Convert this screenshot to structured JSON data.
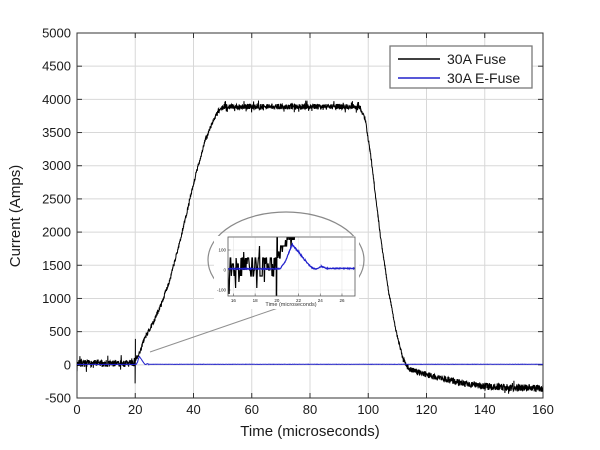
{
  "colors": {
    "background": "#ffffff",
    "grid": "#d8d8d8",
    "axis": "#333333",
    "fuse_black": "#000000",
    "efuse_blue": "#2020cc",
    "legend_border": "#7a7a7a",
    "callout_gray": "#909090"
  },
  "chart_data": {
    "type": "line",
    "title": "",
    "xlabel": "Time (microseconds)",
    "ylabel": "Current (Amps)",
    "xlim": [
      0,
      160
    ],
    "ylim": [
      -500,
      5000
    ],
    "x_ticks": [
      0,
      20,
      40,
      60,
      80,
      100,
      120,
      140,
      160
    ],
    "y_ticks": [
      -500,
      0,
      500,
      1000,
      1500,
      2000,
      2500,
      3000,
      3500,
      4000,
      4500,
      5000
    ],
    "grid": true,
    "legend": {
      "position": "top-right",
      "entries": [
        {
          "label": "30A Fuse",
          "color": "#000000"
        },
        {
          "label": "30A E-Fuse",
          "color": "#2020cc"
        }
      ]
    },
    "series": [
      {
        "name": "30A Fuse",
        "color": "#000000",
        "description": "Noisy trace: ~0 A until 20 us, transient spike at 20 us, ramp to ~3900 A by 50 us, plateau ~3900 A until ~98 us, steep fall to 0 by ~112 us, slow decay to ~-350 A at 160 us",
        "segments": [
          {
            "t0": 0,
            "t1": 19.95,
            "v0": 20,
            "v1": 20,
            "noise": 70,
            "spike_frac": 0.1,
            "spike_mult": 1.9
          },
          {
            "t0": 19.95,
            "t1": 20.05,
            "v0": -280,
            "v1": 390,
            "noise": 0
          },
          {
            "t0": 20.05,
            "t1": 21.5,
            "v0": 80,
            "v1": 180,
            "noise": 45
          },
          {
            "t0": 21.5,
            "t1": 23,
            "v0": 180,
            "v1": 380,
            "noise": 45
          },
          {
            "t0": 23,
            "t1": 26,
            "v0": 380,
            "v1": 620,
            "noise": 45
          },
          {
            "t0": 26,
            "t1": 29,
            "v0": 620,
            "v1": 920,
            "noise": 45
          },
          {
            "t0": 29,
            "t1": 32,
            "v0": 920,
            "v1": 1300,
            "noise": 45
          },
          {
            "t0": 32,
            "t1": 35,
            "v0": 1300,
            "v1": 1800,
            "noise": 45
          },
          {
            "t0": 35,
            "t1": 38,
            "v0": 1800,
            "v1": 2350,
            "noise": 45
          },
          {
            "t0": 38,
            "t1": 41,
            "v0": 2350,
            "v1": 2900,
            "noise": 45
          },
          {
            "t0": 41,
            "t1": 44,
            "v0": 2900,
            "v1": 3380,
            "noise": 45
          },
          {
            "t0": 44,
            "t1": 46.5,
            "v0": 3380,
            "v1": 3650,
            "noise": 45
          },
          {
            "t0": 46.5,
            "t1": 48.5,
            "v0": 3650,
            "v1": 3820,
            "noise": 45
          },
          {
            "t0": 48.5,
            "t1": 50.5,
            "v0": 3820,
            "v1": 3890,
            "noise": 50
          },
          {
            "t0": 50.5,
            "t1": 97,
            "v0": 3890,
            "v1": 3890,
            "noise": 55,
            "spike_frac": 0.07,
            "spike_mult": 1.7
          },
          {
            "t0": 97,
            "t1": 99,
            "v0": 3890,
            "v1": 3700,
            "noise": 45
          },
          {
            "t0": 99,
            "t1": 101,
            "v0": 3700,
            "v1": 3100,
            "noise": 40
          },
          {
            "t0": 101,
            "t1": 104,
            "v0": 3100,
            "v1": 2000,
            "noise": 40
          },
          {
            "t0": 104,
            "t1": 107,
            "v0": 2000,
            "v1": 1100,
            "noise": 40
          },
          {
            "t0": 107,
            "t1": 110,
            "v0": 1100,
            "v1": 420,
            "noise": 40
          },
          {
            "t0": 110,
            "t1": 112,
            "v0": 420,
            "v1": 80,
            "noise": 45
          },
          {
            "t0": 112,
            "t1": 114,
            "v0": 80,
            "v1": -60,
            "noise": 55
          },
          {
            "t0": 114,
            "t1": 118,
            "v0": -60,
            "v1": -125,
            "noise": 60
          },
          {
            "t0": 118,
            "t1": 125,
            "v0": -125,
            "v1": -205,
            "noise": 62
          },
          {
            "t0": 125,
            "t1": 132,
            "v0": -205,
            "v1": -270,
            "noise": 65
          },
          {
            "t0": 132,
            "t1": 140,
            "v0": -270,
            "v1": -320,
            "noise": 67
          },
          {
            "t0": 140,
            "t1": 150,
            "v0": -320,
            "v1": -345,
            "noise": 70,
            "spike_frac": 0.08,
            "spike_mult": 1.6
          },
          {
            "t0": 150,
            "t1": 160,
            "v0": -345,
            "v1": -355,
            "noise": 70,
            "spike_frac": 0.08,
            "spike_mult": 1.6
          }
        ]
      },
      {
        "name": "30A E-Fuse",
        "color": "#2020cc",
        "description": "Flat ~0 A; small triangular bump peaking ~130 A at ~21.4 us after the fault at 20 us, returns to ~5 A by 24 us and stays flat to 160 us",
        "segments": [
          {
            "t0": 0,
            "t1": 20.3,
            "v0": 6,
            "v1": 6,
            "noise": 3
          },
          {
            "t0": 20.3,
            "t1": 20.8,
            "v0": 6,
            "v1": 45,
            "noise": 4
          },
          {
            "t0": 20.8,
            "t1": 21.4,
            "v0": 45,
            "v1": 128,
            "noise": 5
          },
          {
            "t0": 21.4,
            "t1": 22.0,
            "v0": 128,
            "v1": 90,
            "noise": 5
          },
          {
            "t0": 22.0,
            "t1": 22.6,
            "v0": 90,
            "v1": 48,
            "noise": 5
          },
          {
            "t0": 22.6,
            "t1": 23.2,
            "v0": 48,
            "v1": 12,
            "noise": 4
          },
          {
            "t0": 23.2,
            "t1": 23.6,
            "v0": 12,
            "v1": 4,
            "noise": 3
          },
          {
            "t0": 23.6,
            "t1": 24.1,
            "v0": 4,
            "v1": 18,
            "noise": 3
          },
          {
            "t0": 24.1,
            "t1": 24.6,
            "v0": 18,
            "v1": 8,
            "noise": 3
          },
          {
            "t0": 24.6,
            "t1": 160,
            "v0": 8,
            "v1": 8,
            "noise": 3
          }
        ]
      }
    ],
    "inset": {
      "xlabel": "Time (microseconds)",
      "xlim": [
        15.5,
        27.2
      ],
      "ylim": [
        -130,
        165
      ],
      "x_ticks": [
        16,
        18,
        20,
        22,
        24,
        26
      ],
      "y_ticks": [
        -100,
        0,
        100
      ]
    }
  }
}
